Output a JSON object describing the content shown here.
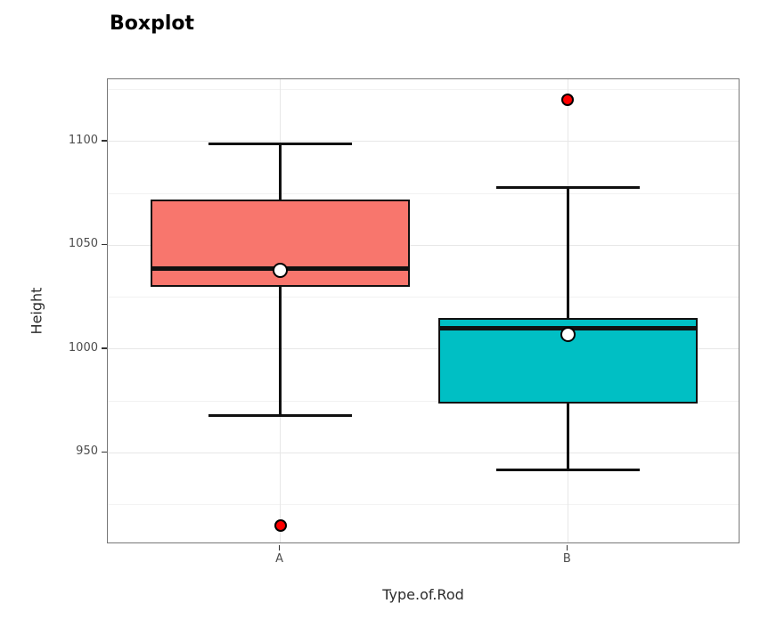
{
  "title": "Boxplot",
  "chart_data": {
    "type": "boxplot",
    "title": "Boxplot",
    "xlabel": "Type.of.Rod",
    "ylabel": "Height",
    "categories": [
      "A",
      "B"
    ],
    "ylim": [
      906,
      1130
    ],
    "y_major_ticks": [
      1100,
      1050,
      1000,
      950
    ],
    "y_minor_ticks": [
      1125,
      1075,
      1025,
      975,
      925
    ],
    "grid": "horizontal major+minor gridlines, vertical gridline at each category",
    "legend": "none",
    "series": [
      {
        "name": "A",
        "fill": "#F8766D",
        "whisker_low": 968,
        "q1": 1030,
        "median": 1039,
        "q3": 1072,
        "whisker_high": 1099,
        "mean": 1038,
        "outliers": [
          915
        ]
      },
      {
        "name": "B",
        "fill": "#00BFC4",
        "whisker_low": 942,
        "q1": 974,
        "median": 1010,
        "q3": 1015,
        "whisker_high": 1078,
        "mean": 1007,
        "outliers": [
          1120
        ]
      }
    ],
    "style": {
      "box_stroke": "#101010",
      "outlier_fill": "#ff0000",
      "outlier_stroke": "#000000",
      "mean_fill": "#ffffff",
      "mean_stroke": "#000000",
      "grid_major_color": "#e7e7e7",
      "grid_minor_color": "#f2f2f2",
      "panel_border_color": "#777777",
      "tick_mark_color": "#333333",
      "tick_label_color": "#4d4d4d",
      "axis_title_color": "#2b2b2b",
      "title_color": "#000000"
    }
  }
}
